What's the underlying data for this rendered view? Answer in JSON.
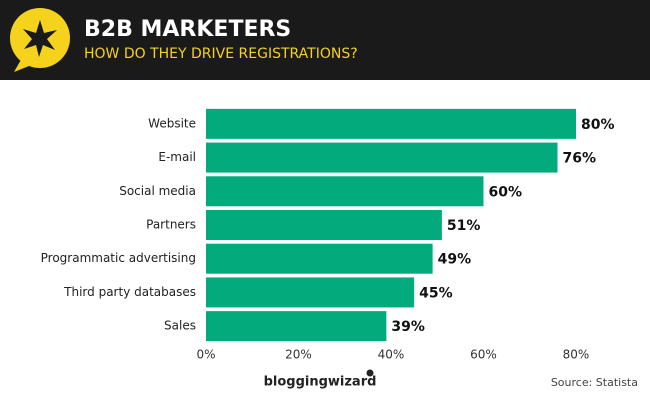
{
  "chart_data": {
    "type": "bar",
    "orientation": "horizontal",
    "title": "B2B MARKETERS",
    "subtitle": "HOW DO THEY DRIVE REGISTRATIONS?",
    "categories": [
      "Website",
      "E-mail",
      "Social media",
      "Partners",
      "Programmatic advertising",
      "Third party databases",
      "Sales"
    ],
    "values": [
      80,
      76,
      60,
      51,
      49,
      45,
      39
    ],
    "value_labels": [
      "80%",
      "76%",
      "60%",
      "51%",
      "49%",
      "45%",
      "39%"
    ],
    "color": "#03ab7c",
    "xlim": [
      0,
      80
    ],
    "xticks": [
      {
        "value": 0,
        "label": "0%"
      },
      {
        "value": 20,
        "label": "20%"
      },
      {
        "value": 40,
        "label": "40%"
      },
      {
        "value": 60,
        "label": "60%"
      },
      {
        "value": 80,
        "label": "80%"
      }
    ],
    "grid": false,
    "brand": "bloggingwizard",
    "source": "Source: Statista"
  }
}
